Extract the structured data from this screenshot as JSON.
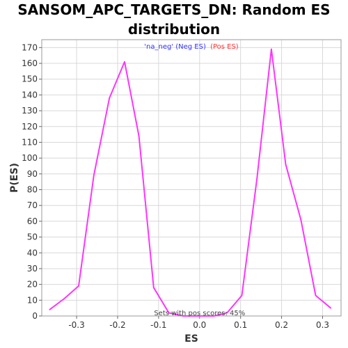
{
  "chart_data": {
    "type": "line",
    "title_line1": "SANSOM_APC_TARGETS_DN: Random ES",
    "title_line2": "distribution",
    "xlabel": "ES",
    "ylabel": "P(ES)",
    "xlim": [
      -0.385,
      0.345
    ],
    "ylim": [
      0,
      175
    ],
    "x_ticks": [
      -0.3,
      -0.2,
      -0.1,
      0.0,
      0.1,
      0.2,
      0.3
    ],
    "x_tick_labels": [
      "-0.3",
      "-0.2",
      "-0.1",
      "0.0",
      "0.1",
      "0.2",
      "0.3"
    ],
    "y_ticks": [
      0,
      10,
      20,
      30,
      40,
      50,
      60,
      70,
      80,
      90,
      100,
      110,
      120,
      130,
      140,
      150,
      160,
      170
    ],
    "grid": true,
    "legend": {
      "placement": "top-center",
      "entries": [
        {
          "text": "'na_neg' (Neg ES)",
          "color": "#3333ff"
        },
        {
          "text": "(Pos ES)",
          "color": "#ff3333"
        }
      ]
    },
    "annotation": "Sets with pos scores: 45%",
    "series": [
      {
        "color": "#ff33ff",
        "points": [
          [
            -0.366,
            4
          ],
          [
            -0.33,
            11
          ],
          [
            -0.295,
            19
          ],
          [
            -0.258,
            89
          ],
          [
            -0.22,
            138
          ],
          [
            -0.183,
            161
          ],
          [
            -0.148,
            114
          ],
          [
            -0.112,
            18
          ],
          [
            -0.075,
            2
          ],
          [
            -0.04,
            0
          ],
          [
            0.0,
            0
          ],
          [
            0.035,
            0
          ],
          [
            0.067,
            2
          ],
          [
            0.103,
            13
          ],
          [
            0.14,
            87
          ],
          [
            0.175,
            169
          ],
          [
            0.21,
            96
          ],
          [
            0.247,
            61
          ],
          [
            0.283,
            13
          ],
          [
            0.32,
            5
          ]
        ]
      }
    ],
    "colors": {
      "line": "#ff33ff",
      "grid": "#d8d8d8",
      "plot_bg": "#ffffff"
    }
  }
}
